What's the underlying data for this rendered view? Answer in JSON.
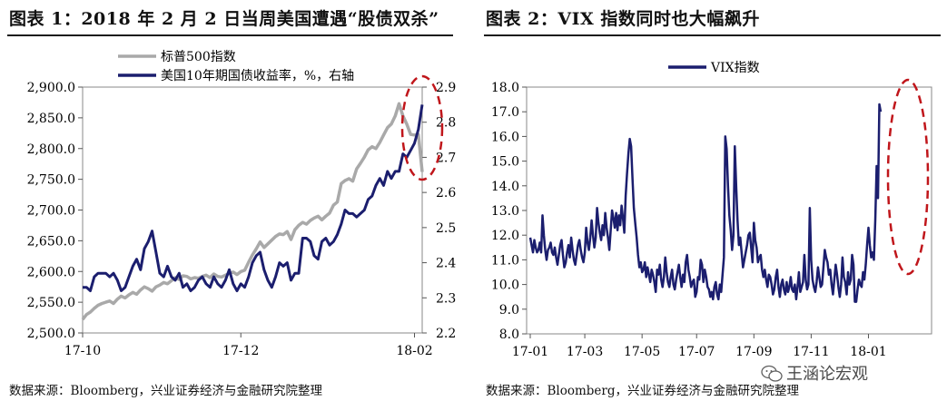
{
  "colors": {
    "sp500": "#a9a9a9",
    "treasury": "#1b1e6e",
    "vix": "#1b1e6e",
    "highlight": "#c0161b",
    "rule": "#1a1a1a"
  },
  "watermark": {
    "text": "王涵论宏观",
    "icon": "wechat-icon"
  },
  "chart_data": [
    {
      "type": "line",
      "title": "图表 1：2018 年 2 月 2 日当周美国遭遇“股债双杀”",
      "source": "数据来源：Bloomberg，兴业证券经济与金融研究院整理",
      "x_ticks": [
        "17-10",
        "17-12",
        "18-02"
      ],
      "x_tick_index": [
        0,
        41,
        86
      ],
      "y_left": {
        "range": [
          2500,
          2900
        ],
        "ticks": [
          "2,500.0",
          "2,550.0",
          "2,600.0",
          "2,650.0",
          "2,700.0",
          "2,750.0",
          "2,800.0",
          "2,850.0",
          "2,900.0"
        ]
      },
      "y_right": {
        "range": [
          2.2,
          2.9
        ],
        "ticks": [
          "2.2",
          "2.3",
          "2.4",
          "2.5",
          "2.6",
          "2.7",
          "2.8",
          "2.9"
        ]
      },
      "legend": {
        "position": "top-center"
      },
      "annotation": "dashed red ellipse around final week",
      "series": [
        {
          "name": "标普500指数",
          "axis": "left",
          "values": [
            2522,
            2530,
            2534,
            2540,
            2545,
            2548,
            2550,
            2552,
            2548,
            2555,
            2560,
            2557,
            2562,
            2566,
            2563,
            2570,
            2575,
            2572,
            2568,
            2575,
            2578,
            2582,
            2580,
            2585,
            2590,
            2587,
            2593,
            2592,
            2588,
            2590,
            2589,
            2592,
            2594,
            2590,
            2596,
            2592,
            2591,
            2594,
            2597,
            2599,
            2595,
            2600,
            2602,
            2615,
            2627,
            2637,
            2648,
            2639,
            2645,
            2651,
            2657,
            2661,
            2660,
            2665,
            2652,
            2668,
            2675,
            2680,
            2677,
            2683,
            2687,
            2690,
            2684,
            2690,
            2695,
            2708,
            2713,
            2743,
            2748,
            2751,
            2747,
            2767,
            2776,
            2786,
            2798,
            2803,
            2800,
            2810,
            2822,
            2834,
            2840,
            2853,
            2873,
            2853,
            2840,
            2823,
            2822,
            2823,
            2762
          ]
        },
        {
          "name": "美国10年期国债收益率，%，右轴",
          "axis": "right",
          "values": [
            2.33,
            2.33,
            2.32,
            2.36,
            2.37,
            2.37,
            2.37,
            2.36,
            2.37,
            2.35,
            2.32,
            2.33,
            2.36,
            2.39,
            2.41,
            2.38,
            2.44,
            2.46,
            2.49,
            2.43,
            2.37,
            2.36,
            2.39,
            2.36,
            2.35,
            2.37,
            2.33,
            2.34,
            2.32,
            2.33,
            2.35,
            2.36,
            2.34,
            2.33,
            2.36,
            2.34,
            2.33,
            2.35,
            2.38,
            2.34,
            2.32,
            2.34,
            2.33,
            2.36,
            2.4,
            2.42,
            2.43,
            2.38,
            2.35,
            2.33,
            2.36,
            2.4,
            2.39,
            2.4,
            2.35,
            2.37,
            2.37,
            2.47,
            2.47,
            2.46,
            2.42,
            2.41,
            2.46,
            2.47,
            2.45,
            2.46,
            2.48,
            2.51,
            2.55,
            2.54,
            2.54,
            2.53,
            2.54,
            2.55,
            2.58,
            2.59,
            2.62,
            2.64,
            2.62,
            2.66,
            2.64,
            2.66,
            2.66,
            2.71,
            2.7,
            2.72,
            2.74,
            2.78,
            2.85
          ]
        }
      ]
    },
    {
      "type": "line",
      "title": "图表 2：VIX 指数同时也大幅飙升",
      "source": "数据来源：Bloomberg，兴业证券经济与金融研究院整理",
      "x_ticks": [
        "17-01",
        "17-03",
        "17-05",
        "17-07",
        "17-09",
        "17-11",
        "18-01"
      ],
      "x_tick_index": [
        0,
        40,
        82,
        122,
        164,
        206,
        248
      ],
      "y": {
        "range": [
          8.0,
          18.0
        ],
        "ticks": [
          "8.0",
          "9.0",
          "10.0",
          "11.0",
          "12.0",
          "13.0",
          "14.0",
          "15.0",
          "16.0",
          "17.0",
          "18.0"
        ]
      },
      "legend": {
        "position": "top-center"
      },
      "annotation": "dashed red ellipse around early Feb 2018 spike",
      "series": [
        {
          "name": "VIX指数",
          "values": [
            11.9,
            11.6,
            11.3,
            11.8,
            11.5,
            11.3,
            11.4,
            11.7,
            11.3,
            12.8,
            12.0,
            11.4,
            11.0,
            11.4,
            11.5,
            11.7,
            11.3,
            11.2,
            11.5,
            11.1,
            10.8,
            11.2,
            11.6,
            11.8,
            11.2,
            10.7,
            10.9,
            11.3,
            11.6,
            11.1,
            11.9,
            11.4,
            11.0,
            10.8,
            11.2,
            11.6,
            11.8,
            11.4,
            11.1,
            10.9,
            11.3,
            12.3,
            11.7,
            11.4,
            11.9,
            12.6,
            12.0,
            11.5,
            11.9,
            13.1,
            12.5,
            12.1,
            11.8,
            12.4,
            12.0,
            12.9,
            12.3,
            11.9,
            11.4,
            12.2,
            13.0,
            12.7,
            12.3,
            12.9,
            12.2,
            12.8,
            12.4,
            13.2,
            12.7,
            12.1,
            13.6,
            14.5,
            15.3,
            15.9,
            15.6,
            14.3,
            13.1,
            12.5,
            11.9,
            11.2,
            10.7,
            10.9,
            10.5,
            10.6,
            10.9,
            10.3,
            10.7,
            10.4,
            10.1,
            10.6,
            10.4,
            10.1,
            9.7,
            10.6,
            10.4,
            10.8,
            10.2,
            9.9,
            10.3,
            11.1,
            10.5,
            10.1,
            9.9,
            10.3,
            10.6,
            10.0,
            9.8,
            10.2,
            10.5,
            10.8,
            10.3,
            9.9,
            10.4,
            10.1,
            10.9,
            11.2,
            10.6,
            10.3,
            9.9,
            10.1,
            10.2,
            9.5,
            9.7,
            10.3,
            10.2,
            11.0,
            10.8,
            10.1,
            10.6,
            10.3,
            9.9,
            9.8,
            9.5,
            9.7,
            9.4,
            9.9,
            10.1,
            9.6,
            9.4,
            10.0,
            9.7,
            10.4,
            11.1,
            16.0,
            15.5,
            14.0,
            12.8,
            12.2,
            11.4,
            12.0,
            15.6,
            14.0,
            12.6,
            11.6,
            11.9,
            11.3,
            10.7,
            11.0,
            11.3,
            11.6,
            12.0,
            12.1,
            11.5,
            10.9,
            12.5,
            11.8,
            11.5,
            10.9,
            11.1,
            11.2,
            10.6,
            10.3,
            10.6,
            10.2,
            9.9,
            10.4,
            10.3,
            10.0,
            9.6,
            9.8,
            10.3,
            10.6,
            9.9,
            9.5,
            10.0,
            10.2,
            9.8,
            9.6,
            10.1,
            9.7,
            9.9,
            10.3,
            9.8,
            9.7,
            10.0,
            9.4,
            9.9,
            10.5,
            9.7,
            9.9,
            10.1,
            11.2,
            10.2,
            9.8,
            10.0,
            13.1,
            11.0,
            10.2,
            9.9,
            9.7,
            10.1,
            10.7,
            10.3,
            9.9,
            10.0,
            10.7,
            11.4,
            11.1,
            10.9,
            10.4,
            10.6,
            10.0,
            9.6,
            10.2,
            10.8,
            10.4,
            9.9,
            9.5,
            10.0,
            11.1,
            10.3,
            10.1,
            9.6,
            10.5,
            10.0,
            10.2,
            11.2,
            10.8,
            9.3,
            9.3,
            9.8,
            10.2,
            10.0,
            9.9,
            10.5,
            10.2,
            10.8,
            11.6,
            12.3,
            11.6,
            11.1,
            11.3,
            11.0,
            12.6,
            14.8,
            13.5,
            17.3,
            17.0
          ]
        }
      ]
    }
  ]
}
